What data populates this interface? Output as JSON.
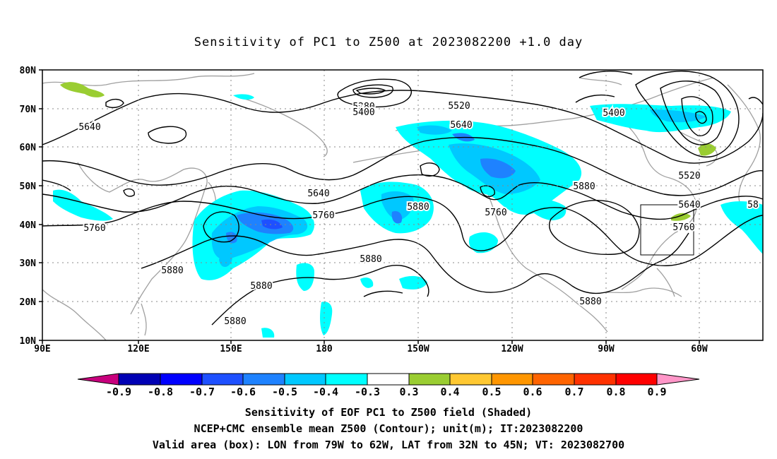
{
  "title": "Sensitivity of PC1 to Z500 at 2023082200 +1.0 day",
  "map": {
    "lat_ticks": [
      "80N",
      "70N",
      "60N",
      "50N",
      "40N",
      "30N",
      "20N",
      "10N"
    ],
    "lon_ticks": [
      "90E",
      "120E",
      "150E",
      "180",
      "150W",
      "120W",
      "90W",
      "60W"
    ],
    "contour_labels": [
      "5280",
      "5400",
      "5520",
      "5640",
      "5400",
      "5640",
      "5520",
      "5640",
      "5760",
      "5880",
      "5640",
      "5760",
      "5760",
      "5880",
      "5880",
      "5760",
      "5880",
      "5880",
      "5880",
      "5880",
      "5880",
      "5640",
      "5760",
      "58"
    ],
    "valid_box": {
      "lon_from": "79W",
      "lon_to": "62W",
      "lat_from": "32N",
      "lat_to": "45N"
    }
  },
  "colorbar": {
    "labels": [
      "-0.9",
      "-0.8",
      "-0.7",
      "-0.6",
      "-0.5",
      "-0.4",
      "-0.3",
      "0.3",
      "0.4",
      "0.5",
      "0.6",
      "0.7",
      "0.8",
      "0.9"
    ],
    "colors": [
      "#c8007d",
      "#0000b4",
      "#0000ff",
      "#1e50ff",
      "#1e82ff",
      "#00c8ff",
      "#00ffff",
      "#ffffff",
      "#9acd32",
      "#ffc832",
      "#ff9600",
      "#ff6400",
      "#ff3200",
      "#ff0000",
      "#ff96c8"
    ]
  },
  "caption": {
    "line1": "Sensitivity of EOF PC1 to Z500 field (Shaded)",
    "line2": "NCEP+CMC ensemble mean Z500 (Contour); unit(m); IT:2023082200",
    "line3": "Valid area (box): LON from 79W to 62W, LAT from 32N to 45N; VT: 2023082700"
  }
}
